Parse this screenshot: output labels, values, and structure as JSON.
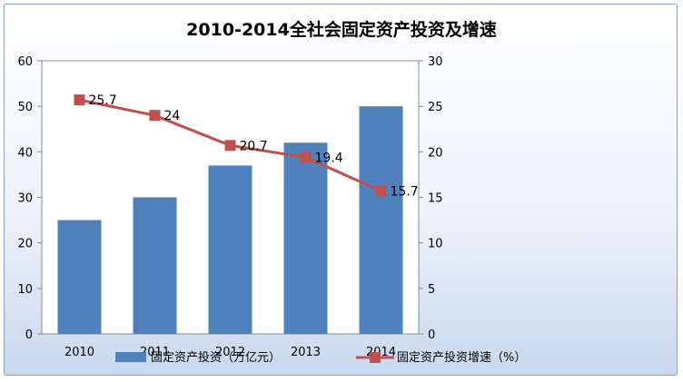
{
  "chart_data": {
    "type": "bar",
    "title": "2010-2014全社会固定资产投资及增速",
    "categories": [
      "2010",
      "2011",
      "2012",
      "2013",
      "2014"
    ],
    "series": [
      {
        "name": "固定资产投资（万亿元）",
        "type": "bar",
        "axis": "left",
        "values": [
          25,
          30,
          37,
          42,
          50
        ]
      },
      {
        "name": "固定资产投资增速（%）",
        "type": "line",
        "axis": "right",
        "values": [
          25.7,
          24,
          20.7,
          19.4,
          15.7
        ],
        "data_labels": [
          "25.7",
          "24",
          "20.7",
          "19.4",
          "15.7"
        ]
      }
    ],
    "y_left": {
      "min": 0,
      "max": 60,
      "ticks": [
        "0",
        "10",
        "20",
        "30",
        "40",
        "50",
        "60"
      ]
    },
    "y_right": {
      "min": 0,
      "max": 30,
      "ticks": [
        "0",
        "5",
        "10",
        "15",
        "20",
        "25",
        "30"
      ]
    },
    "grid": false,
    "legend_position": "bottom",
    "colors": {
      "bar": "#4f81bd",
      "line": "#c0504d",
      "frame": "#8aa0bd"
    }
  }
}
